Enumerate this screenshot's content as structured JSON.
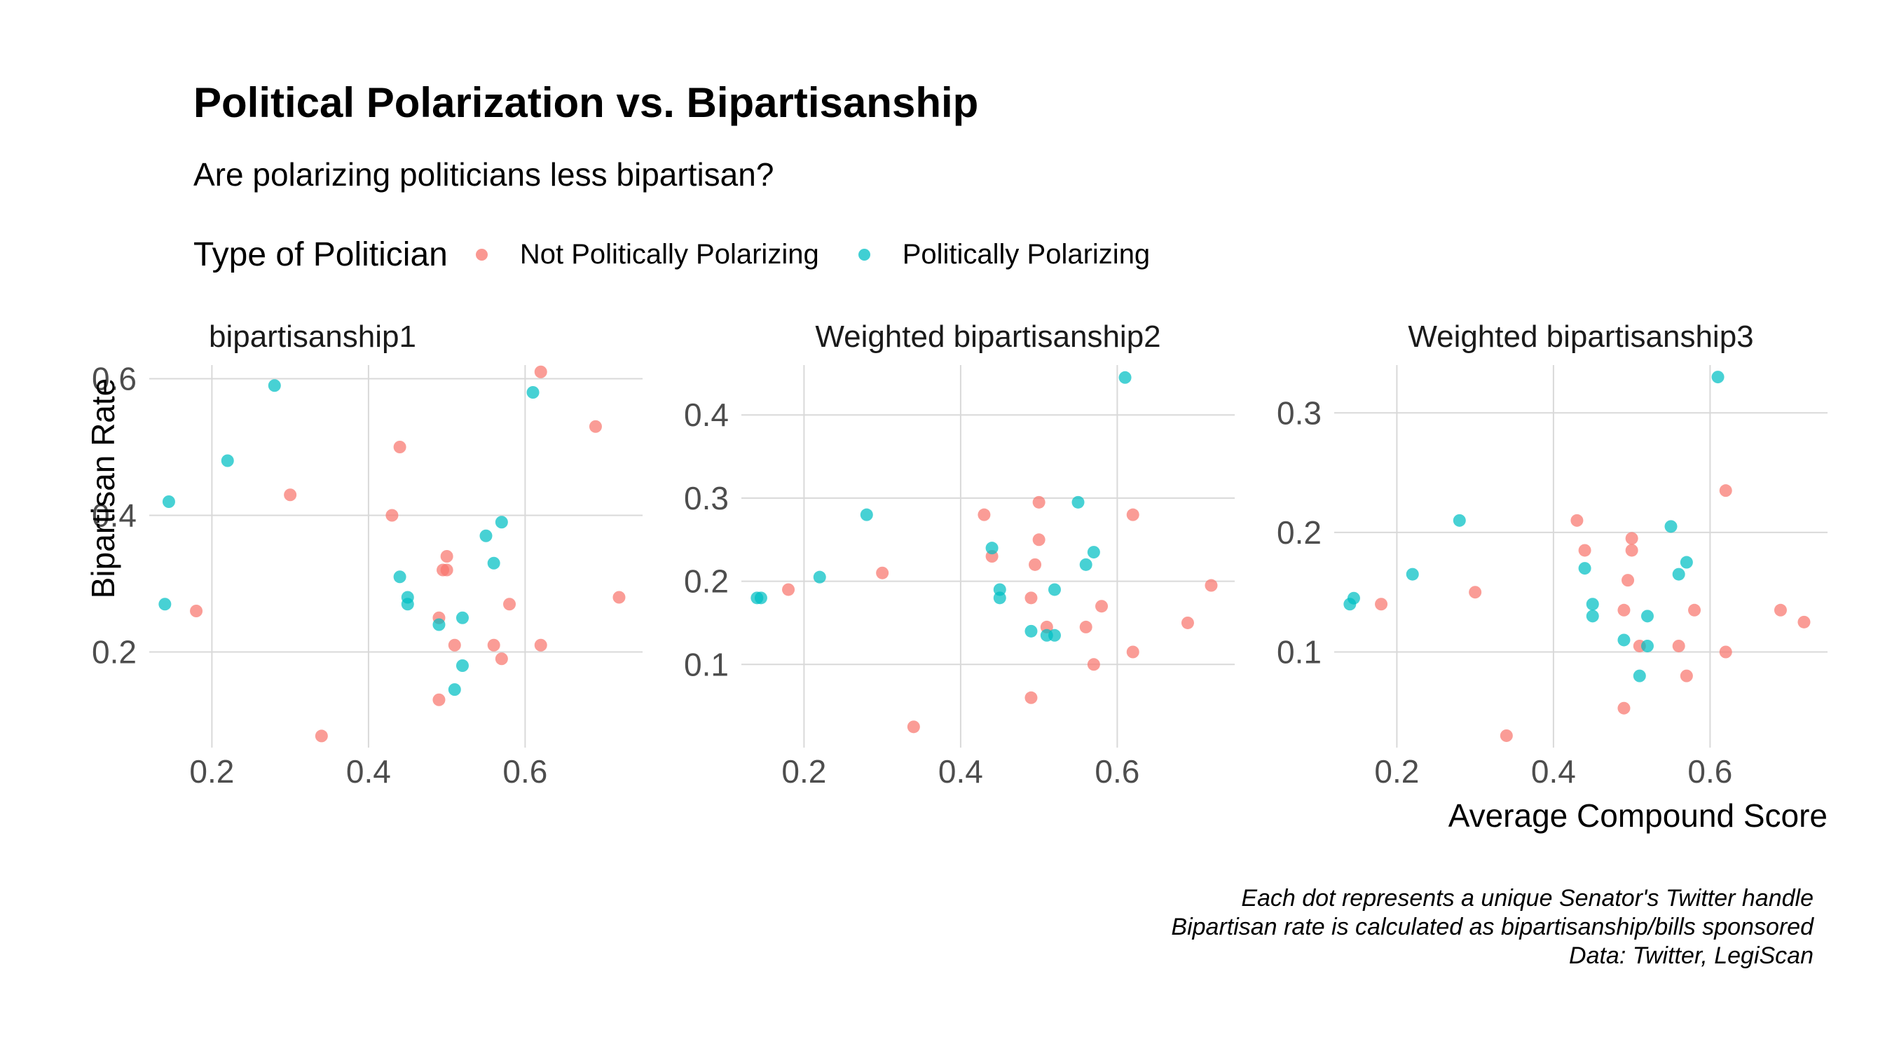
{
  "title": "Political Polarization vs. Bipartisanship",
  "subtitle": "Are polarizing politicians less bipartisan?",
  "legend": {
    "title": "Type of Politician",
    "items": [
      {
        "label": "Not Politically Polarizing",
        "color": "#F8766D"
      },
      {
        "label": "Politically Polarizing",
        "color": "#00BFC4"
      }
    ]
  },
  "caption": {
    "line1": "Each dot represents a unique Senator's Twitter handle",
    "line2": "Bipartisan rate is calculated as bipartisanship/bills sponsored",
    "line3": "Data: Twitter, LegiScan"
  },
  "chart_data": {
    "type": "scatter",
    "xlabel": "Average Compound Score",
    "ylabel": "Bipartisan Rate",
    "xlim": [
      0.12,
      0.75
    ],
    "xticks": [
      0.2,
      0.4,
      0.6
    ],
    "grid": true,
    "legend_position": "top",
    "series_colors": {
      "Not Politically Polarizing": "#F8766D",
      "Politically Polarizing": "#00BFC4"
    },
    "panels": [
      {
        "title": "bipartisanship1",
        "ylim": [
          0.06,
          0.62
        ],
        "yticks": [
          0.2,
          0.4,
          0.6
        ],
        "points": [
          {
            "x": 0.18,
            "y": 0.26,
            "group": "Not Politically Polarizing"
          },
          {
            "x": 0.3,
            "y": 0.43,
            "group": "Not Politically Polarizing"
          },
          {
            "x": 0.34,
            "y": 0.077,
            "group": "Not Politically Polarizing"
          },
          {
            "x": 0.43,
            "y": 0.4,
            "group": "Not Politically Polarizing"
          },
          {
            "x": 0.44,
            "y": 0.5,
            "group": "Not Politically Polarizing"
          },
          {
            "x": 0.49,
            "y": 0.25,
            "group": "Not Politically Polarizing"
          },
          {
            "x": 0.49,
            "y": 0.13,
            "group": "Not Politically Polarizing"
          },
          {
            "x": 0.495,
            "y": 0.32,
            "group": "Not Politically Polarizing"
          },
          {
            "x": 0.5,
            "y": 0.32,
            "group": "Not Politically Polarizing"
          },
          {
            "x": 0.5,
            "y": 0.34,
            "group": "Not Politically Polarizing"
          },
          {
            "x": 0.51,
            "y": 0.21,
            "group": "Not Politically Polarizing"
          },
          {
            "x": 0.56,
            "y": 0.21,
            "group": "Not Politically Polarizing"
          },
          {
            "x": 0.57,
            "y": 0.19,
            "group": "Not Politically Polarizing"
          },
          {
            "x": 0.58,
            "y": 0.27,
            "group": "Not Politically Polarizing"
          },
          {
            "x": 0.62,
            "y": 0.21,
            "group": "Not Politically Polarizing"
          },
          {
            "x": 0.62,
            "y": 0.61,
            "group": "Not Politically Polarizing"
          },
          {
            "x": 0.69,
            "y": 0.53,
            "group": "Not Politically Polarizing"
          },
          {
            "x": 0.72,
            "y": 0.28,
            "group": "Not Politically Polarizing"
          },
          {
            "x": 0.14,
            "y": 0.27,
            "group": "Politically Polarizing"
          },
          {
            "x": 0.145,
            "y": 0.42,
            "group": "Politically Polarizing"
          },
          {
            "x": 0.22,
            "y": 0.48,
            "group": "Politically Polarizing"
          },
          {
            "x": 0.28,
            "y": 0.59,
            "group": "Politically Polarizing"
          },
          {
            "x": 0.44,
            "y": 0.31,
            "group": "Politically Polarizing"
          },
          {
            "x": 0.45,
            "y": 0.28,
            "group": "Politically Polarizing"
          },
          {
            "x": 0.45,
            "y": 0.27,
            "group": "Politically Polarizing"
          },
          {
            "x": 0.49,
            "y": 0.24,
            "group": "Politically Polarizing"
          },
          {
            "x": 0.51,
            "y": 0.145,
            "group": "Politically Polarizing"
          },
          {
            "x": 0.52,
            "y": 0.25,
            "group": "Politically Polarizing"
          },
          {
            "x": 0.52,
            "y": 0.18,
            "group": "Politically Polarizing"
          },
          {
            "x": 0.55,
            "y": 0.37,
            "group": "Politically Polarizing"
          },
          {
            "x": 0.56,
            "y": 0.33,
            "group": "Politically Polarizing"
          },
          {
            "x": 0.57,
            "y": 0.39,
            "group": "Politically Polarizing"
          },
          {
            "x": 0.61,
            "y": 0.58,
            "group": "Politically Polarizing"
          }
        ]
      },
      {
        "title": "Weighted bipartisanship2",
        "ylim": [
          0.0,
          0.46
        ],
        "yticks": [
          0.1,
          0.2,
          0.3,
          0.4
        ],
        "points": [
          {
            "x": 0.18,
            "y": 0.19,
            "group": "Not Politically Polarizing"
          },
          {
            "x": 0.3,
            "y": 0.21,
            "group": "Not Politically Polarizing"
          },
          {
            "x": 0.34,
            "y": 0.025,
            "group": "Not Politically Polarizing"
          },
          {
            "x": 0.43,
            "y": 0.28,
            "group": "Not Politically Polarizing"
          },
          {
            "x": 0.44,
            "y": 0.23,
            "group": "Not Politically Polarizing"
          },
          {
            "x": 0.49,
            "y": 0.18,
            "group": "Not Politically Polarizing"
          },
          {
            "x": 0.49,
            "y": 0.06,
            "group": "Not Politically Polarizing"
          },
          {
            "x": 0.495,
            "y": 0.22,
            "group": "Not Politically Polarizing"
          },
          {
            "x": 0.5,
            "y": 0.295,
            "group": "Not Politically Polarizing"
          },
          {
            "x": 0.5,
            "y": 0.25,
            "group": "Not Politically Polarizing"
          },
          {
            "x": 0.51,
            "y": 0.145,
            "group": "Not Politically Polarizing"
          },
          {
            "x": 0.56,
            "y": 0.145,
            "group": "Not Politically Polarizing"
          },
          {
            "x": 0.57,
            "y": 0.1,
            "group": "Not Politically Polarizing"
          },
          {
            "x": 0.58,
            "y": 0.17,
            "group": "Not Politically Polarizing"
          },
          {
            "x": 0.62,
            "y": 0.115,
            "group": "Not Politically Polarizing"
          },
          {
            "x": 0.62,
            "y": 0.28,
            "group": "Not Politically Polarizing"
          },
          {
            "x": 0.69,
            "y": 0.15,
            "group": "Not Politically Polarizing"
          },
          {
            "x": 0.72,
            "y": 0.195,
            "group": "Not Politically Polarizing"
          },
          {
            "x": 0.14,
            "y": 0.18,
            "group": "Politically Polarizing"
          },
          {
            "x": 0.145,
            "y": 0.18,
            "group": "Politically Polarizing"
          },
          {
            "x": 0.22,
            "y": 0.205,
            "group": "Politically Polarizing"
          },
          {
            "x": 0.28,
            "y": 0.28,
            "group": "Politically Polarizing"
          },
          {
            "x": 0.44,
            "y": 0.24,
            "group": "Politically Polarizing"
          },
          {
            "x": 0.45,
            "y": 0.19,
            "group": "Politically Polarizing"
          },
          {
            "x": 0.45,
            "y": 0.18,
            "group": "Politically Polarizing"
          },
          {
            "x": 0.49,
            "y": 0.14,
            "group": "Politically Polarizing"
          },
          {
            "x": 0.51,
            "y": 0.135,
            "group": "Politically Polarizing"
          },
          {
            "x": 0.52,
            "y": 0.135,
            "group": "Politically Polarizing"
          },
          {
            "x": 0.52,
            "y": 0.19,
            "group": "Politically Polarizing"
          },
          {
            "x": 0.55,
            "y": 0.295,
            "group": "Politically Polarizing"
          },
          {
            "x": 0.56,
            "y": 0.22,
            "group": "Politically Polarizing"
          },
          {
            "x": 0.57,
            "y": 0.235,
            "group": "Politically Polarizing"
          },
          {
            "x": 0.61,
            "y": 0.445,
            "group": "Politically Polarizing"
          }
        ]
      },
      {
        "title": "Weighted bipartisanship3",
        "ylim": [
          0.02,
          0.34
        ],
        "yticks": [
          0.1,
          0.2,
          0.3
        ],
        "points": [
          {
            "x": 0.18,
            "y": 0.14,
            "group": "Not Politically Polarizing"
          },
          {
            "x": 0.3,
            "y": 0.15,
            "group": "Not Politically Polarizing"
          },
          {
            "x": 0.34,
            "y": 0.03,
            "group": "Not Politically Polarizing"
          },
          {
            "x": 0.43,
            "y": 0.21,
            "group": "Not Politically Polarizing"
          },
          {
            "x": 0.44,
            "y": 0.185,
            "group": "Not Politically Polarizing"
          },
          {
            "x": 0.49,
            "y": 0.135,
            "group": "Not Politically Polarizing"
          },
          {
            "x": 0.49,
            "y": 0.053,
            "group": "Not Politically Polarizing"
          },
          {
            "x": 0.495,
            "y": 0.16,
            "group": "Not Politically Polarizing"
          },
          {
            "x": 0.5,
            "y": 0.195,
            "group": "Not Politically Polarizing"
          },
          {
            "x": 0.5,
            "y": 0.185,
            "group": "Not Politically Polarizing"
          },
          {
            "x": 0.51,
            "y": 0.105,
            "group": "Not Politically Polarizing"
          },
          {
            "x": 0.56,
            "y": 0.105,
            "group": "Not Politically Polarizing"
          },
          {
            "x": 0.57,
            "y": 0.08,
            "group": "Not Politically Polarizing"
          },
          {
            "x": 0.58,
            "y": 0.135,
            "group": "Not Politically Polarizing"
          },
          {
            "x": 0.62,
            "y": 0.1,
            "group": "Not Politically Polarizing"
          },
          {
            "x": 0.62,
            "y": 0.235,
            "group": "Not Politically Polarizing"
          },
          {
            "x": 0.69,
            "y": 0.135,
            "group": "Not Politically Polarizing"
          },
          {
            "x": 0.72,
            "y": 0.125,
            "group": "Not Politically Polarizing"
          },
          {
            "x": 0.14,
            "y": 0.14,
            "group": "Politically Polarizing"
          },
          {
            "x": 0.145,
            "y": 0.145,
            "group": "Politically Polarizing"
          },
          {
            "x": 0.22,
            "y": 0.165,
            "group": "Politically Polarizing"
          },
          {
            "x": 0.28,
            "y": 0.21,
            "group": "Politically Polarizing"
          },
          {
            "x": 0.44,
            "y": 0.17,
            "group": "Politically Polarizing"
          },
          {
            "x": 0.45,
            "y": 0.14,
            "group": "Politically Polarizing"
          },
          {
            "x": 0.45,
            "y": 0.13,
            "group": "Politically Polarizing"
          },
          {
            "x": 0.49,
            "y": 0.11,
            "group": "Politically Polarizing"
          },
          {
            "x": 0.51,
            "y": 0.08,
            "group": "Politically Polarizing"
          },
          {
            "x": 0.52,
            "y": 0.13,
            "group": "Politically Polarizing"
          },
          {
            "x": 0.52,
            "y": 0.105,
            "group": "Politically Polarizing"
          },
          {
            "x": 0.55,
            "y": 0.205,
            "group": "Politically Polarizing"
          },
          {
            "x": 0.56,
            "y": 0.165,
            "group": "Politically Polarizing"
          },
          {
            "x": 0.57,
            "y": 0.175,
            "group": "Politically Polarizing"
          },
          {
            "x": 0.61,
            "y": 0.33,
            "group": "Politically Polarizing"
          }
        ]
      }
    ]
  }
}
